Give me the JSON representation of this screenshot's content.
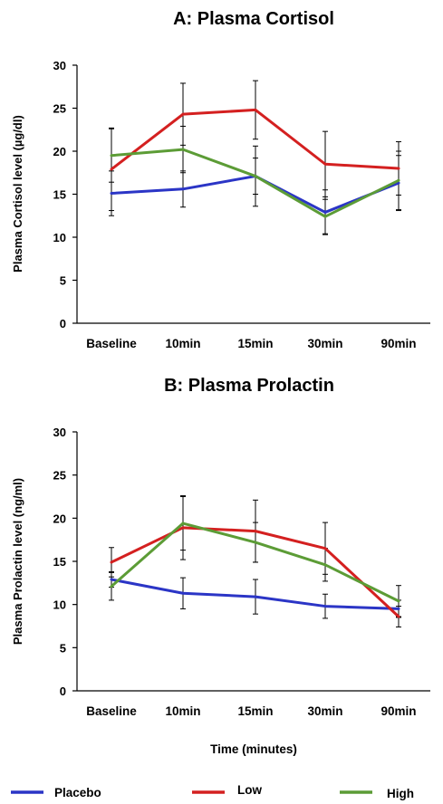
{
  "chart_data": [
    {
      "type": "line",
      "title": "A: Plasma Cortisol",
      "ylabel": "Plasma Cortisol level  (µg/dl)",
      "xlabel": "",
      "ylim": [
        0,
        30
      ],
      "yticks": [
        0,
        5,
        10,
        15,
        20,
        25,
        30
      ],
      "categories": [
        "Baseline",
        "10min",
        "15min",
        "30min",
        "90min"
      ],
      "series": [
        {
          "name": "Placebo",
          "color": "#2b35c6",
          "values": [
            15.1,
            15.6,
            17.1,
            12.9,
            16.3
          ],
          "error": [
            2.6,
            2.1,
            2.1,
            2.6,
            3.2
          ]
        },
        {
          "name": "Low",
          "color": "#d42020",
          "values": [
            17.9,
            24.3,
            24.8,
            18.5,
            18.0
          ],
          "error": [
            4.8,
            3.6,
            3.4,
            3.8,
            3.1
          ]
        },
        {
          "name": "High",
          "color": "#5c9c36",
          "values": [
            19.5,
            20.2,
            17.1,
            12.4,
            16.6
          ],
          "error": [
            3.1,
            2.7,
            3.5,
            2.0,
            3.4
          ]
        }
      ]
    },
    {
      "type": "line",
      "title": "B: Plasma Prolactin",
      "ylabel": "Plasma Prolactin level  (ng/ml)",
      "xlabel": "Time (minutes)",
      "ylim": [
        0,
        30
      ],
      "yticks": [
        0,
        5,
        10,
        15,
        20,
        25,
        30
      ],
      "categories": [
        "Baseline",
        "10min",
        "15min",
        "30min",
        "90min"
      ],
      "series": [
        {
          "name": "Placebo",
          "color": "#2b35c6",
          "values": [
            12.9,
            11.3,
            10.9,
            9.8,
            9.5
          ],
          "error": [
            0.9,
            1.8,
            2.0,
            1.4,
            1.0
          ]
        },
        {
          "name": "Low",
          "color": "#d42020",
          "values": [
            14.9,
            18.9,
            18.5,
            16.5,
            8.6
          ],
          "error": [
            1.7,
            3.7,
            3.6,
            3.0,
            1.2
          ]
        },
        {
          "name": "High",
          "color": "#5c9c36",
          "values": [
            12.1,
            19.4,
            17.2,
            14.6,
            10.4
          ],
          "error": [
            1.6,
            3.1,
            2.3,
            1.9,
            1.8
          ]
        }
      ]
    }
  ],
  "legend": [
    {
      "label": "Placebo",
      "color": "#2b35c6"
    },
    {
      "label": "Low",
      "color": "#d42020"
    },
    {
      "label": "High",
      "color": "#5c9c36"
    }
  ]
}
